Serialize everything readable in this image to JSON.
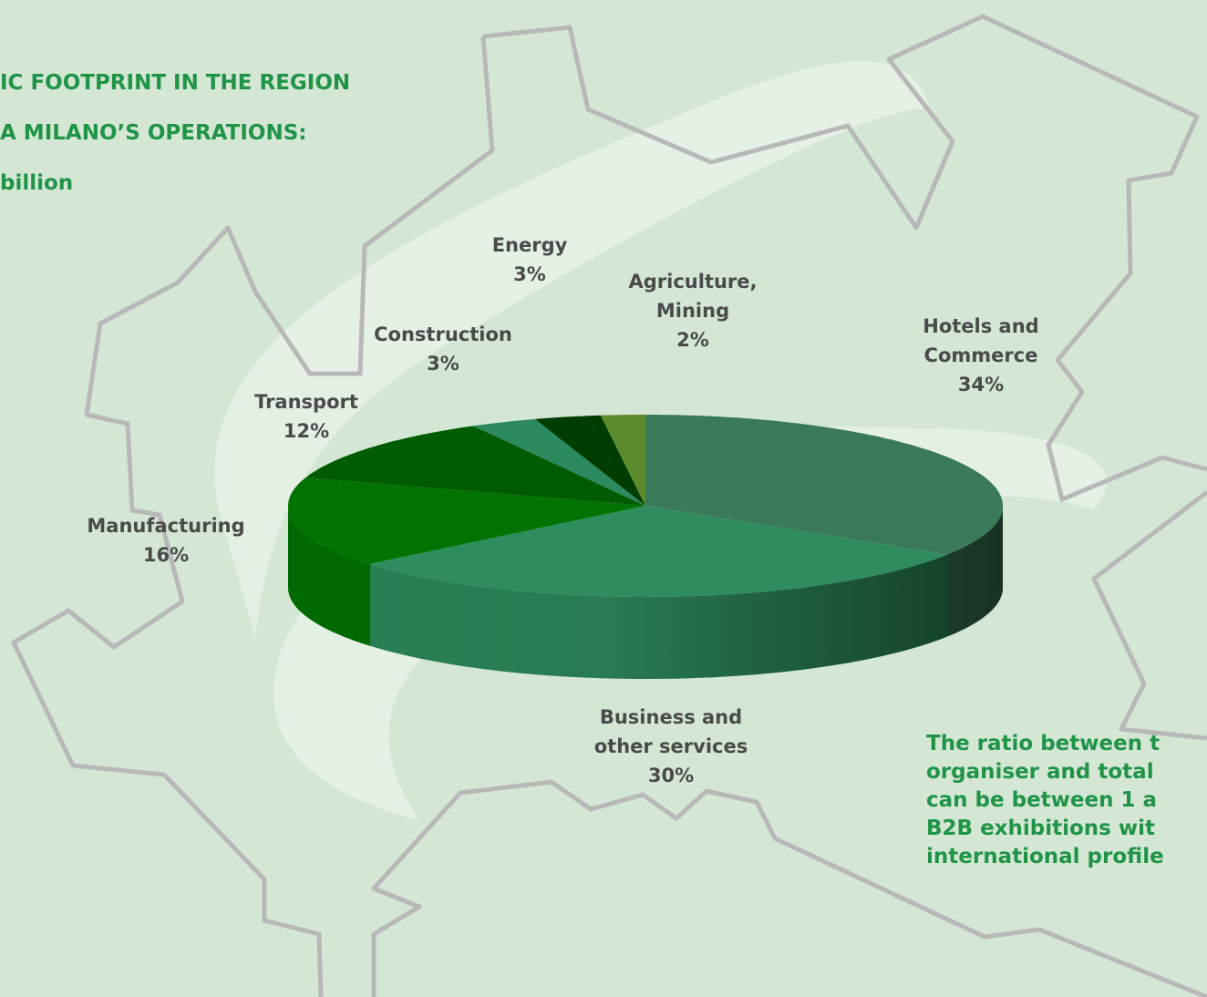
{
  "header": {
    "title_lines": [
      "IC FOOTPRINT IN THE REGION",
      "A MILANO’S OPERATIONS:",
      "billion"
    ]
  },
  "chart_data": {
    "type": "pie",
    "categories": [
      "Hotels and Commerce",
      "Business and other services",
      "Manufacturing",
      "Transport",
      "Construction",
      "Energy",
      "Agriculture, Mining"
    ],
    "values": [
      34,
      30,
      16,
      12,
      3,
      3,
      2
    ],
    "value_labels": [
      "34%",
      "30%",
      "16%",
      "12%",
      "3%",
      "3%",
      "2%"
    ],
    "colors": [
      "#3a7a58",
      "#2e8c5e",
      "#007300",
      "#005c00",
      "#2b8a60",
      "#003d00",
      "#5a8a2c"
    ]
  },
  "note": {
    "lines": [
      "The ratio between t",
      "organiser and total",
      "can be between 1 a",
      "B2B exhibitions wit",
      "international profile"
    ]
  }
}
